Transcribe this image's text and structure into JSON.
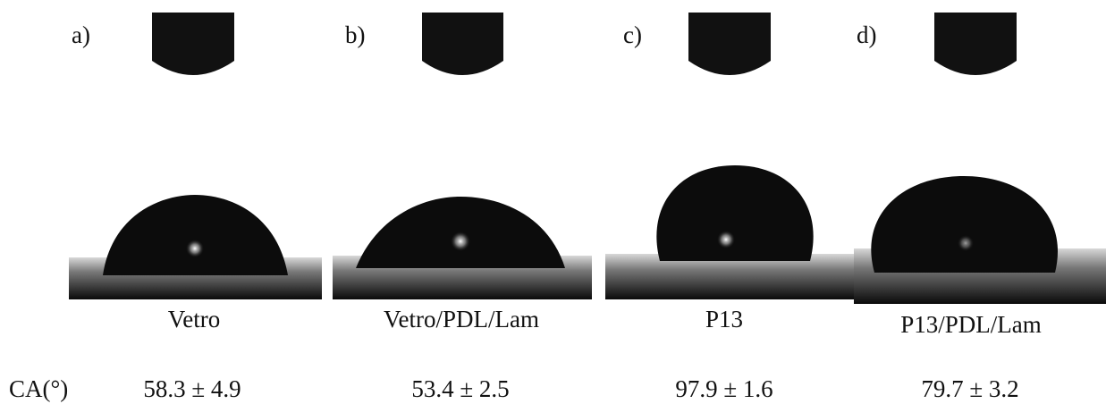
{
  "ca_label": "CA(°)",
  "panels": [
    {
      "label": "a)",
      "sample": "Vetro",
      "ca": "58.3 ± 4.9"
    },
    {
      "label": "b)",
      "sample": "Vetro/PDL/Lam",
      "ca": "53.4 ± 2.5"
    },
    {
      "label": "c)",
      "sample": "P13",
      "ca": "97.9 ± 1.6"
    },
    {
      "label": "d)",
      "sample": "P13/PDL/Lam",
      "ca": "79.7 ± 3.2"
    }
  ]
}
